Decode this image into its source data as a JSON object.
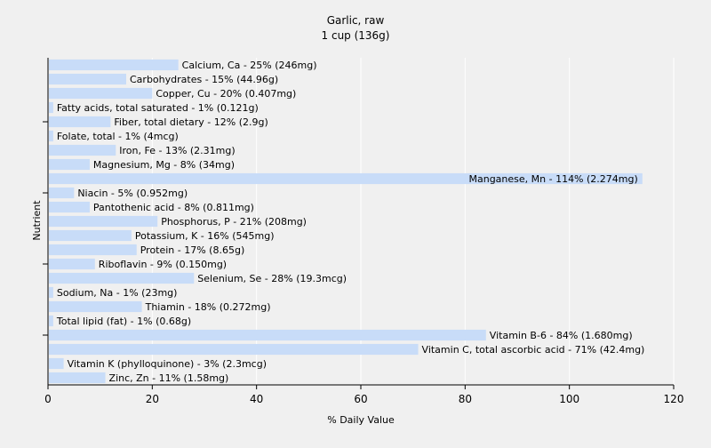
{
  "chart_data": {
    "type": "bar",
    "orientation": "horizontal",
    "title": "Garlic, raw",
    "subtitle": "1 cup (136g)",
    "xlabel": "% Daily Value",
    "ylabel": "Nutrient",
    "xlim": [
      0,
      120
    ],
    "xticks": [
      0,
      20,
      40,
      60,
      80,
      100,
      120
    ],
    "grid": true,
    "colors": {
      "bar": "#c8dcf8",
      "grid": "#ffffff",
      "plot_bg": "#f0f0f0",
      "axis": "#000000"
    },
    "categories": [
      "Calcium, Ca",
      "Carbohydrates",
      "Copper, Cu",
      "Fatty acids, total saturated",
      "Fiber, total dietary",
      "Folate, total",
      "Iron, Fe",
      "Magnesium, Mg",
      "Manganese, Mn",
      "Niacin",
      "Pantothenic acid",
      "Phosphorus, P",
      "Potassium, K",
      "Protein",
      "Riboflavin",
      "Selenium, Se",
      "Sodium, Na",
      "Thiamin",
      "Total lipid (fat)",
      "Vitamin B-6",
      "Vitamin C, total ascorbic acid",
      "Vitamin K (phylloquinone)",
      "Zinc, Zn"
    ],
    "values": [
      25,
      15,
      20,
      1,
      12,
      1,
      13,
      8,
      114,
      5,
      8,
      21,
      16,
      17,
      9,
      28,
      1,
      18,
      1,
      84,
      71,
      3,
      11
    ],
    "labels": [
      "Calcium, Ca - 25% (246mg)",
      "Carbohydrates - 15% (44.96g)",
      "Copper, Cu - 20% (0.407mg)",
      "Fatty acids, total saturated - 1% (0.121g)",
      "Fiber, total dietary - 12% (2.9g)",
      "Folate, total - 1% (4mcg)",
      "Iron, Fe - 13% (2.31mg)",
      "Magnesium, Mg - 8% (34mg)",
      "Manganese, Mn - 114% (2.274mg)",
      "Niacin - 5% (0.952mg)",
      "Pantothenic acid - 8% (0.811mg)",
      "Phosphorus, P - 21% (208mg)",
      "Potassium, K - 16% (545mg)",
      "Protein - 17% (8.65g)",
      "Riboflavin - 9% (0.150mg)",
      "Selenium, Se - 28% (19.3mcg)",
      "Sodium, Na - 1% (23mg)",
      "Thiamin - 18% (0.272mg)",
      "Total lipid (fat) - 1% (0.68g)",
      "Vitamin B-6 - 84% (1.680mg)",
      "Vitamin C, total ascorbic acid - 71% (42.4mg)",
      "Vitamin K (phylloquinone) - 3% (2.3mcg)",
      "Zinc, Zn - 11% (1.58mg)"
    ]
  }
}
